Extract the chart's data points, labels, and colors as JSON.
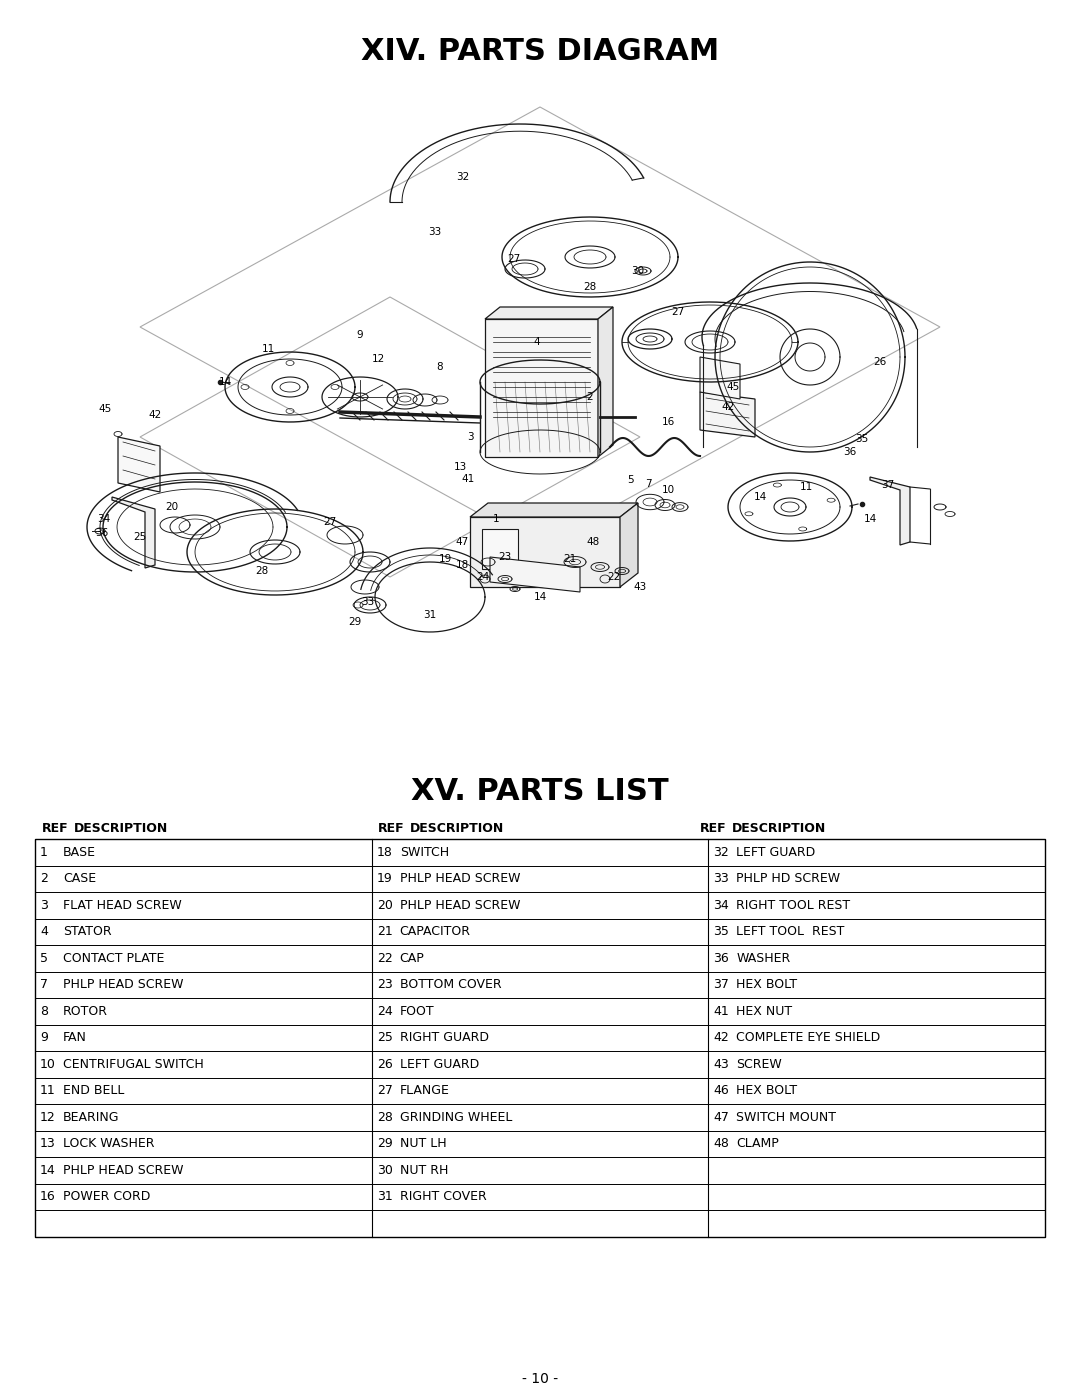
{
  "title1": "XIV. PARTS DIAGRAM",
  "title2": "XV. PARTS LIST",
  "footer": "- 10 -",
  "parts": [
    [
      [
        "1",
        "BASE"
      ],
      [
        "2",
        "CASE"
      ],
      [
        "3",
        "FLAT HEAD SCREW"
      ],
      [
        "4",
        "STATOR"
      ],
      [
        "5",
        "CONTACT PLATE"
      ],
      [
        "7",
        "PHLP HEAD SCREW"
      ],
      [
        "8",
        "ROTOR"
      ],
      [
        "9",
        "FAN"
      ],
      [
        "10",
        "CENTRIFUGAL SWITCH"
      ],
      [
        "11",
        "END BELL"
      ],
      [
        "12",
        "BEARING"
      ],
      [
        "13",
        "LOCK WASHER"
      ],
      [
        "14",
        "PHLP HEAD SCREW"
      ],
      [
        "16",
        "POWER CORD"
      ]
    ],
    [
      [
        "18",
        "SWITCH"
      ],
      [
        "19",
        "PHLP HEAD SCREW"
      ],
      [
        "20",
        "PHLP HEAD SCREW"
      ],
      [
        "21",
        "CAPACITOR"
      ],
      [
        "22",
        "CAP"
      ],
      [
        "23",
        "BOTTOM COVER"
      ],
      [
        "24",
        "FOOT"
      ],
      [
        "25",
        "RIGHT GUARD"
      ],
      [
        "26",
        "LEFT GUARD"
      ],
      [
        "27",
        "FLANGE"
      ],
      [
        "28",
        "GRINDING WHEEL"
      ],
      [
        "29",
        "NUT LH"
      ],
      [
        "30",
        "NUT RH"
      ],
      [
        "31",
        "RIGHT COVER"
      ]
    ],
    [
      [
        "32",
        "LEFT GUARD"
      ],
      [
        "33",
        "PHLP HD SCREW"
      ],
      [
        "34",
        "RIGHT TOOL REST"
      ],
      [
        "35",
        "LEFT TOOL  REST"
      ],
      [
        "36",
        "WASHER"
      ],
      [
        "37",
        "HEX BOLT"
      ],
      [
        "41",
        "HEX NUT"
      ],
      [
        "42",
        "COMPLETE EYE SHIELD"
      ],
      [
        "43",
        "SCREW"
      ],
      [
        "46",
        "HEX BOLT"
      ],
      [
        "47",
        "SWITCH MOUNT"
      ],
      [
        "48",
        "CLAMP"
      ],
      [
        "",
        ""
      ],
      [
        "",
        ""
      ]
    ]
  ],
  "bg_color": "#ffffff",
  "text_color": "#000000",
  "line_color": "#000000"
}
